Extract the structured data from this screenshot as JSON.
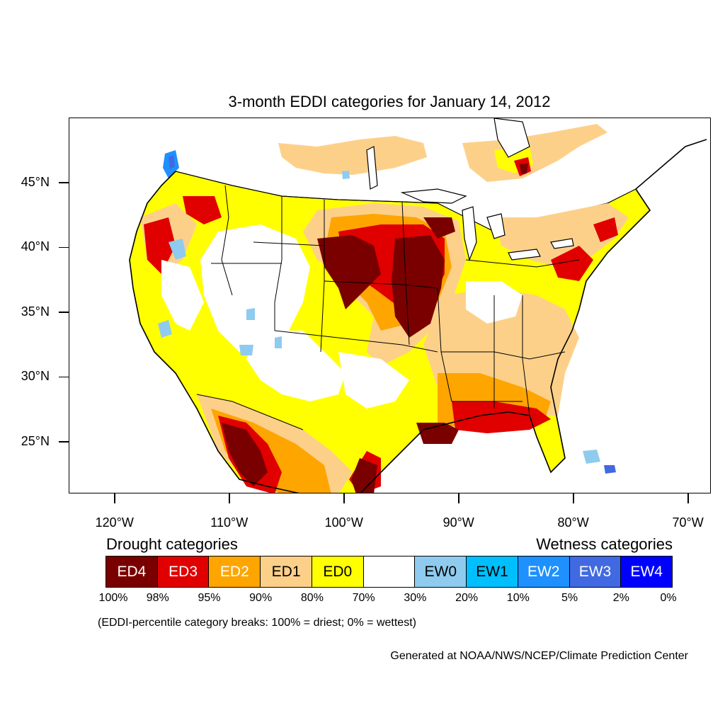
{
  "title": "3-month EDDI categories for January 14, 2012",
  "map": {
    "lon_range": [
      -124,
      -68
    ],
    "lat_range": [
      21,
      50
    ],
    "lat_ticks": [
      {
        "value": 45,
        "label": "45°N"
      },
      {
        "value": 40,
        "label": "40°N"
      },
      {
        "value": 35,
        "label": "35°N"
      },
      {
        "value": 30,
        "label": "30°N"
      },
      {
        "value": 25,
        "label": "25°N"
      }
    ],
    "lon_ticks": [
      {
        "value": -120,
        "label": "120°W"
      },
      {
        "value": -110,
        "label": "110°W"
      },
      {
        "value": -100,
        "label": "100°W"
      },
      {
        "value": -90,
        "label": "90°W"
      },
      {
        "value": -80,
        "label": "80°W"
      },
      {
        "value": -70,
        "label": "70°W"
      }
    ]
  },
  "legend": {
    "drought_heading": "Drought categories",
    "wetness_heading": "Wetness categories",
    "categories": [
      {
        "label": "ED4",
        "color": "#7a0000",
        "text_color": "#ffffff"
      },
      {
        "label": "ED3",
        "color": "#e00000",
        "text_color": "#ffffff"
      },
      {
        "label": "ED2",
        "color": "#ffa500",
        "text_color": "#ffffff"
      },
      {
        "label": "ED1",
        "color": "#fdd08a",
        "text_color": "#000000"
      },
      {
        "label": "ED0",
        "color": "#ffff00",
        "text_color": "#000000"
      },
      {
        "label": "",
        "color": "#ffffff",
        "text_color": "#000000"
      },
      {
        "label": "EW0",
        "color": "#8fcbee",
        "text_color": "#000000"
      },
      {
        "label": "EW1",
        "color": "#00bfff",
        "text_color": "#000000"
      },
      {
        "label": "EW2",
        "color": "#1e90ff",
        "text_color": "#ffffff"
      },
      {
        "label": "EW3",
        "color": "#4169e1",
        "text_color": "#ffffff"
      },
      {
        "label": "EW4",
        "color": "#0000ff",
        "text_color": "#ffffff"
      }
    ],
    "breaks": [
      "100%",
      "98%",
      "95%",
      "90%",
      "80%",
      "70%",
      "30%",
      "20%",
      "10%",
      "5%",
      "2%",
      "0%"
    ]
  },
  "note": "(EDDI-percentile category breaks: 100% = driest; 0% = wettest)",
  "credit": "Generated at NOAA/NWS/NCEP/Climate Prediction Center"
}
